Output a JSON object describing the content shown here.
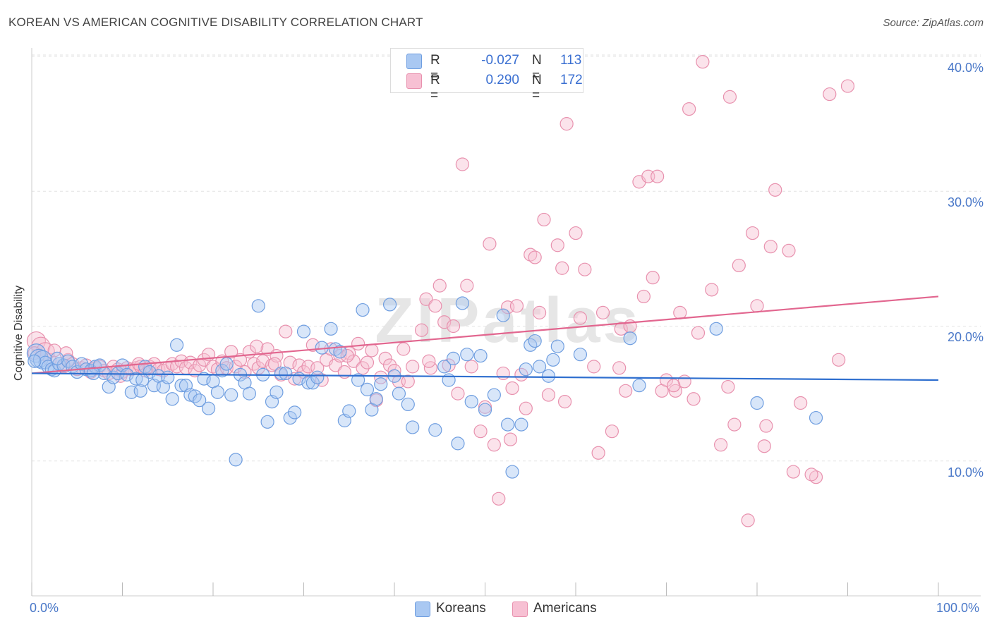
{
  "title": "KOREAN VS AMERICAN COGNITIVE DISABILITY CORRELATION CHART",
  "source": "Source: ZipAtlas.com",
  "watermark": "ZIPatlas",
  "colors": {
    "korean_fill": "#a9c8f2",
    "korean_stroke": "#6f9ee0",
    "korean_line": "#2f6fcf",
    "american_fill": "#f7c0d3",
    "american_stroke": "#e891ae",
    "american_line": "#e2668f",
    "axis_text": "#4a78c8",
    "grid": "#e3e3e3"
  },
  "legend": {
    "rows": [
      {
        "r_label": "R =",
        "r_value": "-0.027",
        "n_label": "N =",
        "n_value": "113"
      },
      {
        "r_label": "R =",
        "r_value": "0.290",
        "n_label": "N =",
        "n_value": "172"
      }
    ]
  },
  "chart_data": {
    "type": "scatter",
    "title": "KOREAN VS AMERICAN COGNITIVE DISABILITY CORRELATION CHART",
    "xlabel": "",
    "ylabel": "Cognitive Disability",
    "xlim": [
      0,
      100
    ],
    "ylim": [
      0,
      40
    ],
    "x_tick_labels": [
      "0.0%",
      "100.0%"
    ],
    "y_tick_labels": [
      "10.0%",
      "20.0%",
      "30.0%",
      "40.0%"
    ],
    "y_ticks": [
      10,
      20,
      30,
      40
    ],
    "grid": true,
    "legend_position": "bottom-center",
    "series": [
      {
        "name": "Koreans",
        "r": -0.027,
        "n": 113,
        "trend": {
          "x": [
            0,
            100
          ],
          "y": [
            16.5,
            16.0
          ]
        },
        "points": [
          [
            0.5,
            18.0
          ],
          [
            0.8,
            17.6
          ],
          [
            1.2,
            17.5
          ],
          [
            1.5,
            17.3
          ],
          [
            1.8,
            17.0
          ],
          [
            2.2,
            16.8
          ],
          [
            2.5,
            16.7
          ],
          [
            3.0,
            17.2
          ],
          [
            3.5,
            17.1
          ],
          [
            4.0,
            17.4
          ],
          [
            4.5,
            17.0
          ],
          [
            5.0,
            16.6
          ],
          [
            5.5,
            17.2
          ],
          [
            6.0,
            16.8
          ],
          [
            6.5,
            16.7
          ],
          [
            7.0,
            17.0
          ],
          [
            7.5,
            17.1
          ],
          [
            8.0,
            16.5
          ],
          [
            8.5,
            15.5
          ],
          [
            9.0,
            16.2
          ],
          [
            9.5,
            16.5
          ],
          [
            10.0,
            17.1
          ],
          [
            10.5,
            16.4
          ],
          [
            11.0,
            15.1
          ],
          [
            11.5,
            16.1
          ],
          [
            12.0,
            15.2
          ],
          [
            12.5,
            17.0
          ],
          [
            13.0,
            16.6
          ],
          [
            13.5,
            15.6
          ],
          [
            14.0,
            16.3
          ],
          [
            14.5,
            15.5
          ],
          [
            15.0,
            16.2
          ],
          [
            15.5,
            14.6
          ],
          [
            16.0,
            18.6
          ],
          [
            16.5,
            15.6
          ],
          [
            17.0,
            15.6
          ],
          [
            17.5,
            14.9
          ],
          [
            18.0,
            14.8
          ],
          [
            18.5,
            14.5
          ],
          [
            19.0,
            16.1
          ],
          [
            19.5,
            13.9
          ],
          [
            20.0,
            15.9
          ],
          [
            20.5,
            15.1
          ],
          [
            21.0,
            16.7
          ],
          [
            21.5,
            17.2
          ],
          [
            22.0,
            14.9
          ],
          [
            22.5,
            10.1
          ],
          [
            23.0,
            16.4
          ],
          [
            23.5,
            15.8
          ],
          [
            24.0,
            15.0
          ],
          [
            25.0,
            21.5
          ],
          [
            25.5,
            16.4
          ],
          [
            26.0,
            12.9
          ],
          [
            26.5,
            14.4
          ],
          [
            27.0,
            15.1
          ],
          [
            27.5,
            16.5
          ],
          [
            28.0,
            16.5
          ],
          [
            28.5,
            13.2
          ],
          [
            29.0,
            13.6
          ],
          [
            29.5,
            16.1
          ],
          [
            30.0,
            19.6
          ],
          [
            30.5,
            15.8
          ],
          [
            31.0,
            15.8
          ],
          [
            31.5,
            16.2
          ],
          [
            32.0,
            18.4
          ],
          [
            33.0,
            19.8
          ],
          [
            33.5,
            18.3
          ],
          [
            34.0,
            18.1
          ],
          [
            34.5,
            13.0
          ],
          [
            35.0,
            13.7
          ],
          [
            36.0,
            16.0
          ],
          [
            36.5,
            21.2
          ],
          [
            37.0,
            15.3
          ],
          [
            37.5,
            13.8
          ],
          [
            38.0,
            14.6
          ],
          [
            38.5,
            15.7
          ],
          [
            39.5,
            21.6
          ],
          [
            40.0,
            16.3
          ],
          [
            40.5,
            15.0
          ],
          [
            41.5,
            14.2
          ],
          [
            42.0,
            12.5
          ],
          [
            44.5,
            12.3
          ],
          [
            45.5,
            17.0
          ],
          [
            46.0,
            16.0
          ],
          [
            46.5,
            17.6
          ],
          [
            47.0,
            11.3
          ],
          [
            47.5,
            21.7
          ],
          [
            48.0,
            17.9
          ],
          [
            48.5,
            14.4
          ],
          [
            49.5,
            17.8
          ],
          [
            50.0,
            13.8
          ],
          [
            51.0,
            14.9
          ],
          [
            52.0,
            20.8
          ],
          [
            52.5,
            12.7
          ],
          [
            53.0,
            9.2
          ],
          [
            54.0,
            12.7
          ],
          [
            54.5,
            16.8
          ],
          [
            55.0,
            18.6
          ],
          [
            55.5,
            18.9
          ],
          [
            56.0,
            17.0
          ],
          [
            57.0,
            16.3
          ],
          [
            57.5,
            17.5
          ],
          [
            58.0,
            18.5
          ],
          [
            60.5,
            17.9
          ],
          [
            66.0,
            19.1
          ],
          [
            67.0,
            15.6
          ],
          [
            75.5,
            19.8
          ],
          [
            80.0,
            14.3
          ],
          [
            86.5,
            13.2
          ],
          [
            0.3,
            17.4
          ],
          [
            2.8,
            17.6
          ],
          [
            6.8,
            16.5
          ],
          [
            12.2,
            16.0
          ]
        ]
      },
      {
        "name": "Americans",
        "r": 0.29,
        "n": 172,
        "trend": {
          "x": [
            0,
            100
          ],
          "y": [
            16.5,
            22.2
          ]
        },
        "points": [
          [
            0.5,
            18.9
          ],
          [
            1.0,
            18.5
          ],
          [
            1.5,
            18.1
          ],
          [
            2.0,
            17.5
          ],
          [
            2.5,
            18.2
          ],
          [
            3.0,
            17.2
          ],
          [
            3.5,
            17.0
          ],
          [
            4.0,
            17.5
          ],
          [
            4.5,
            17.2
          ],
          [
            5.0,
            16.8
          ],
          [
            5.5,
            16.9
          ],
          [
            6.0,
            17.1
          ],
          [
            6.5,
            16.6
          ],
          [
            7.0,
            16.9
          ],
          [
            7.5,
            17.0
          ],
          [
            8.0,
            16.7
          ],
          [
            8.5,
            16.5
          ],
          [
            9.0,
            17.0
          ],
          [
            9.5,
            16.8
          ],
          [
            10.0,
            16.6
          ],
          [
            10.5,
            16.9
          ],
          [
            11.0,
            16.8
          ],
          [
            11.5,
            16.9
          ],
          [
            12.0,
            17.0
          ],
          [
            12.5,
            16.7
          ],
          [
            13.0,
            17.0
          ],
          [
            13.5,
            17.2
          ],
          [
            14.0,
            16.8
          ],
          [
            14.5,
            16.7
          ],
          [
            15.0,
            16.9
          ],
          [
            15.5,
            17.2
          ],
          [
            16.0,
            17.0
          ],
          [
            16.5,
            17.4
          ],
          [
            17.0,
            16.9
          ],
          [
            17.5,
            17.3
          ],
          [
            18.0,
            16.7
          ],
          [
            18.5,
            17.1
          ],
          [
            19.0,
            17.5
          ],
          [
            19.5,
            17.9
          ],
          [
            20.0,
            17.0
          ],
          [
            20.5,
            16.8
          ],
          [
            21.0,
            17.4
          ],
          [
            21.5,
            16.9
          ],
          [
            22.0,
            18.1
          ],
          [
            22.5,
            17.0
          ],
          [
            23.0,
            17.5
          ],
          [
            23.5,
            16.6
          ],
          [
            24.0,
            18.1
          ],
          [
            24.5,
            17.2
          ],
          [
            25.0,
            16.9
          ],
          [
            25.5,
            17.4
          ],
          [
            26.0,
            18.3
          ],
          [
            26.5,
            17.1
          ],
          [
            27.0,
            17.8
          ],
          [
            27.5,
            16.4
          ],
          [
            28.0,
            19.6
          ],
          [
            28.5,
            17.3
          ],
          [
            29.0,
            16.1
          ],
          [
            29.5,
            17.1
          ],
          [
            30.0,
            16.6
          ],
          [
            30.5,
            17.0
          ],
          [
            31.0,
            18.6
          ],
          [
            31.5,
            16.9
          ],
          [
            32.0,
            16.0
          ],
          [
            32.5,
            17.5
          ],
          [
            33.0,
            18.3
          ],
          [
            33.5,
            17.1
          ],
          [
            34.0,
            17.8
          ],
          [
            34.5,
            16.6
          ],
          [
            35.0,
            18.0
          ],
          [
            35.5,
            17.4
          ],
          [
            36.0,
            18.7
          ],
          [
            36.5,
            16.9
          ],
          [
            37.0,
            17.3
          ],
          [
            37.5,
            18.2
          ],
          [
            38.0,
            14.5
          ],
          [
            38.5,
            16.2
          ],
          [
            39.0,
            17.6
          ],
          [
            39.5,
            17.1
          ],
          [
            40.0,
            16.7
          ],
          [
            40.5,
            15.9
          ],
          [
            41.0,
            18.3
          ],
          [
            41.5,
            15.9
          ],
          [
            42.0,
            17.0
          ],
          [
            43.0,
            19.7
          ],
          [
            43.5,
            22.0
          ],
          [
            44.0,
            16.9
          ],
          [
            44.5,
            21.5
          ],
          [
            45.0,
            23.0
          ],
          [
            45.5,
            20.3
          ],
          [
            46.0,
            17.1
          ],
          [
            46.5,
            20.0
          ],
          [
            47.0,
            15.0
          ],
          [
            47.5,
            32.0
          ],
          [
            48.0,
            23.0
          ],
          [
            48.5,
            17.0
          ],
          [
            49.5,
            12.2
          ],
          [
            50.0,
            14.0
          ],
          [
            50.5,
            26.1
          ],
          [
            51.0,
            11.2
          ],
          [
            51.5,
            7.2
          ],
          [
            52.0,
            16.5
          ],
          [
            52.5,
            21.4
          ],
          [
            53.0,
            15.4
          ],
          [
            53.5,
            21.5
          ],
          [
            54.0,
            16.4
          ],
          [
            54.5,
            13.9
          ],
          [
            55.0,
            25.3
          ],
          [
            55.5,
            25.1
          ],
          [
            56.0,
            21.0
          ],
          [
            56.5,
            27.9
          ],
          [
            57.0,
            14.9
          ],
          [
            58.0,
            26.0
          ],
          [
            58.5,
            24.3
          ],
          [
            59.0,
            35.0
          ],
          [
            60.0,
            26.9
          ],
          [
            60.5,
            20.6
          ],
          [
            61.0,
            24.2
          ],
          [
            62.0,
            17.0
          ],
          [
            62.5,
            10.6
          ],
          [
            63.0,
            21.0
          ],
          [
            64.0,
            12.2
          ],
          [
            65.0,
            19.8
          ],
          [
            65.5,
            15.2
          ],
          [
            66.0,
            20.0
          ],
          [
            67.0,
            30.7
          ],
          [
            67.5,
            22.2
          ],
          [
            68.0,
            31.1
          ],
          [
            68.5,
            23.6
          ],
          [
            69.0,
            31.1
          ],
          [
            69.5,
            15.2
          ],
          [
            70.0,
            16.0
          ],
          [
            71.0,
            15.2
          ],
          [
            71.5,
            21.0
          ],
          [
            72.0,
            15.9
          ],
          [
            72.5,
            36.1
          ],
          [
            73.0,
            14.6
          ],
          [
            73.5,
            19.5
          ],
          [
            74.0,
            39.6
          ],
          [
            75.0,
            22.7
          ],
          [
            76.0,
            11.2
          ],
          [
            77.0,
            37.0
          ],
          [
            77.5,
            12.7
          ],
          [
            78.0,
            24.5
          ],
          [
            79.0,
            5.6
          ],
          [
            79.5,
            26.9
          ],
          [
            80.0,
            21.5
          ],
          [
            81.0,
            12.6
          ],
          [
            81.5,
            25.9
          ],
          [
            82.0,
            30.1
          ],
          [
            83.5,
            25.6
          ],
          [
            84.0,
            9.2
          ],
          [
            86.5,
            8.8
          ],
          [
            88.0,
            37.2
          ],
          [
            89.0,
            17.5
          ],
          [
            90.0,
            37.8
          ],
          [
            0.3,
            18.0
          ],
          [
            3.8,
            18.0
          ],
          [
            9.8,
            16.3
          ],
          [
            11.8,
            17.2
          ],
          [
            24.8,
            18.5
          ],
          [
            26.8,
            17.2
          ],
          [
            34.8,
            17.8
          ],
          [
            43.8,
            17.4
          ],
          [
            52.8,
            11.6
          ],
          [
            58.8,
            14.4
          ],
          [
            64.8,
            16.9
          ],
          [
            70.8,
            15.6
          ],
          [
            76.8,
            15.5
          ],
          [
            80.8,
            11.1
          ],
          [
            84.8,
            14.3
          ],
          [
            86.0,
            9.0
          ]
        ]
      }
    ]
  },
  "bottom_legend": {
    "items": [
      {
        "label": "Koreans"
      },
      {
        "label": "Americans"
      }
    ]
  }
}
